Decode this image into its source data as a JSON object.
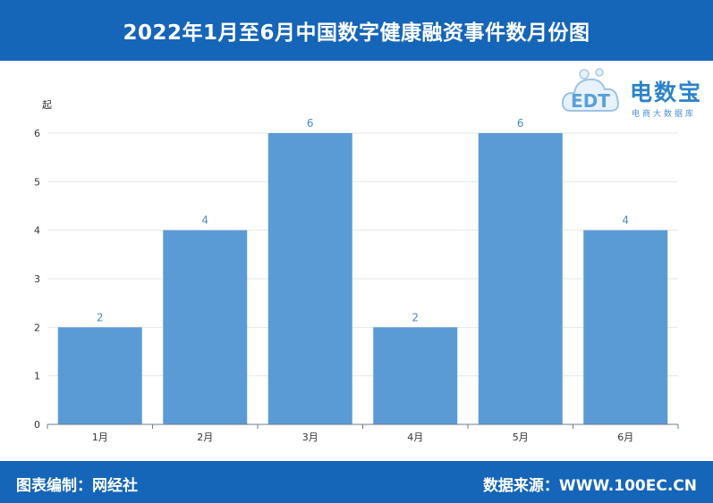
{
  "header": {
    "title": "2022年1月至6月中国数字健康融资事件数月份图"
  },
  "logo": {
    "brand": "电数宝",
    "tagline": "电商大数据库",
    "mark": "EDT"
  },
  "footer": {
    "left": "图表编制：网经社",
    "right": "数据来源：WWW.100EC.CN"
  },
  "colors": {
    "bar": "#5b9bd5",
    "banner": "#1565b8"
  },
  "chart_data": {
    "type": "bar",
    "title": "2022年1月至6月中国数字健康融资事件数月份图",
    "ylabel": "起",
    "categories": [
      "1月",
      "2月",
      "3月",
      "4月",
      "5月",
      "6月"
    ],
    "values": [
      2,
      4,
      6,
      2,
      6,
      4
    ],
    "ylim": [
      0,
      6
    ],
    "yticks": [
      0,
      1,
      2,
      3,
      4,
      5,
      6
    ],
    "grid": true,
    "data_labels": true
  }
}
